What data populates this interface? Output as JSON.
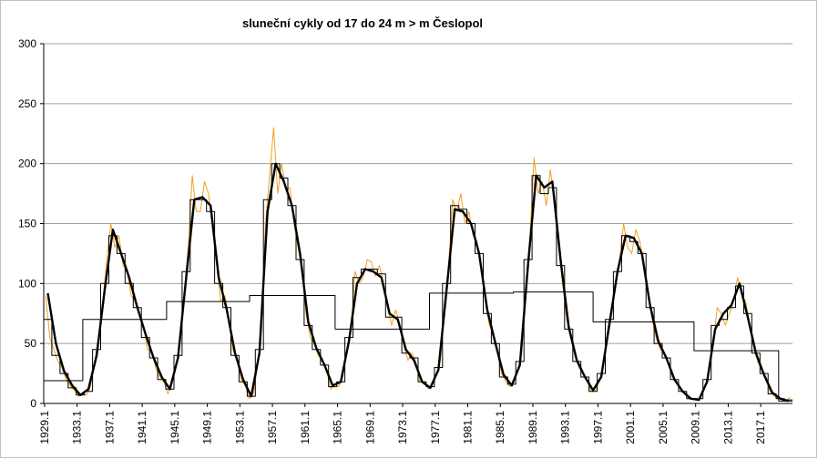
{
  "chart_data": {
    "type": "line",
    "title": "sluneční cykly od 17 do 24   m > m  Česlopol",
    "xlim": [
      1929,
      2021
    ],
    "ylim": [
      0,
      300
    ],
    "yticks": [
      0,
      50,
      100,
      150,
      200,
      250,
      300
    ],
    "xticks": [
      1929.1,
      1933.1,
      1937.1,
      1941.1,
      1945.1,
      1949.1,
      1953.1,
      1957.1,
      1961.1,
      1965.1,
      1969.1,
      1973.1,
      1977.1,
      1981.1,
      1985.1,
      1989.1,
      1993.1,
      1997.1,
      2001.1,
      2005.1,
      2009.1,
      2013.1,
      2017.1
    ],
    "grid": true,
    "series": [
      {
        "style": "line",
        "color": "#f4a020",
        "x": [
          1929.25,
          1929.75,
          1930.25,
          1930.75,
          1931.25,
          1931.75,
          1932.25,
          1932.75,
          1933.25,
          1933.75,
          1934.25,
          1934.75,
          1935.25,
          1935.75,
          1936.25,
          1936.75,
          1937.25,
          1937.75,
          1938.25,
          1938.75,
          1939.25,
          1939.75,
          1940.25,
          1940.75,
          1941.25,
          1941.75,
          1942.25,
          1942.75,
          1943.25,
          1943.75,
          1944.25,
          1944.75,
          1945.25,
          1945.75,
          1946.25,
          1946.75,
          1947.25,
          1947.75,
          1948.25,
          1948.75,
          1949.25,
          1949.75,
          1950.25,
          1950.75,
          1951.25,
          1951.75,
          1952.25,
          1952.75,
          1953.25,
          1953.75,
          1954.25,
          1954.75,
          1955.25,
          1955.75,
          1956.25,
          1956.75,
          1957.25,
          1957.75,
          1958.25,
          1958.75,
          1959.25,
          1959.75,
          1960.25,
          1960.75,
          1961.25,
          1961.75,
          1962.25,
          1962.75,
          1963.25,
          1963.75,
          1964.25,
          1964.75,
          1965.25,
          1965.75,
          1966.25,
          1966.75,
          1967.25,
          1967.75,
          1968.25,
          1968.75,
          1969.25,
          1969.75,
          1970.25,
          1970.75,
          1971.25,
          1971.75,
          1972.25,
          1972.75,
          1973.25,
          1973.75,
          1974.25,
          1974.75,
          1975.25,
          1975.75,
          1976.25,
          1976.75,
          1977.25,
          1977.75,
          1978.25,
          1978.75,
          1979.25,
          1979.75,
          1980.25,
          1980.75,
          1981.25,
          1981.75,
          1982.25,
          1982.75,
          1983.25,
          1983.75,
          1984.25,
          1984.75,
          1985.25,
          1985.75,
          1986.25,
          1986.75,
          1987.25,
          1987.75,
          1988.25,
          1988.75,
          1989.25,
          1989.75,
          1990.25,
          1990.75,
          1991.25,
          1991.75,
          1992.25,
          1992.75,
          1993.25,
          1993.75,
          1994.25,
          1994.75,
          1995.25,
          1995.75,
          1996.25,
          1996.75,
          1997.25,
          1997.75,
          1998.25,
          1998.75,
          1999.25,
          1999.75,
          2000.25,
          2000.75,
          2001.25,
          2001.75,
          2002.25,
          2002.75,
          2003.25,
          2003.75,
          2004.25,
          2004.75,
          2005.25,
          2005.75,
          2006.25,
          2006.75,
          2007.25,
          2007.75,
          2008.25,
          2008.75,
          2009.25,
          2009.75,
          2010.25,
          2010.75,
          2011.25,
          2011.75,
          2012.25,
          2012.75,
          2013.25,
          2013.75,
          2014.25,
          2014.75,
          2015.25,
          2015.75,
          2016.25,
          2016.75,
          2017.25,
          2017.75,
          2018.25,
          2018.75,
          2019.25,
          2019.75,
          2020.25,
          2020.75
        ],
        "values": [
          90,
          55,
          45,
          35,
          30,
          20,
          15,
          11,
          6,
          8,
          7,
          14,
          35,
          55,
          85,
          120,
          150,
          130,
          140,
          115,
          110,
          90,
          85,
          75,
          65,
          45,
          45,
          30,
          22,
          18,
          8,
          16,
          30,
          50,
          90,
          130,
          190,
          160,
          160,
          185,
          175,
          145,
          115,
          85,
          90,
          70,
          45,
          35,
          20,
          15,
          4,
          8,
          30,
          60,
          150,
          190,
          230,
          175,
          200,
          178,
          180,
          150,
          130,
          110,
          75,
          55,
          50,
          40,
          35,
          28,
          12,
          16,
          14,
          22,
          45,
          65,
          110,
          100,
          105,
          120,
          118,
          106,
          115,
          100,
          80,
          65,
          78,
          66,
          48,
          36,
          42,
          34,
          18,
          18,
          12,
          16,
          24,
          36,
          85,
          115,
          170,
          160,
          175,
          150,
          160,
          140,
          135,
          115,
          85,
          65,
          58,
          42,
          25,
          19,
          14,
          18,
          28,
          42,
          100,
          140,
          205,
          175,
          185,
          165,
          195,
          165,
          130,
          100,
          70,
          54,
          40,
          30,
          25,
          19,
          10,
          10,
          18,
          32,
          60,
          80,
          100,
          120,
          150,
          130,
          125,
          145,
          135,
          115,
          90,
          70,
          55,
          45,
          42,
          34,
          22,
          18,
          12,
          8,
          4,
          4,
          3,
          5,
          15,
          25,
          50,
          80,
          75,
          65,
          75,
          85,
          105,
          91,
          85,
          65,
          50,
          34,
          28,
          22,
          10,
          6,
          4,
          4,
          3,
          5
        ]
      },
      {
        "style": "step",
        "color": "#000000",
        "x": [
          1929,
          1930,
          1931,
          1932,
          1933,
          1934,
          1935,
          1936,
          1937,
          1938,
          1939,
          1940,
          1941,
          1942,
          1943,
          1944,
          1945,
          1946,
          1947,
          1948,
          1949,
          1950,
          1951,
          1952,
          1953,
          1954,
          1955,
          1956,
          1957,
          1958,
          1959,
          1960,
          1961,
          1962,
          1963,
          1964,
          1965,
          1966,
          1967,
          1968,
          1969,
          1970,
          1971,
          1972,
          1973,
          1974,
          1975,
          1976,
          1977,
          1978,
          1979,
          1980,
          1981,
          1982,
          1983,
          1984,
          1985,
          1986,
          1987,
          1988,
          1989,
          1990,
          1991,
          1992,
          1993,
          1994,
          1995,
          1996,
          1997,
          1998,
          1999,
          2000,
          2001,
          2002,
          2003,
          2004,
          2005,
          2006,
          2007,
          2008,
          2009,
          2010,
          2011,
          2012,
          2013,
          2014,
          2015,
          2016,
          2017,
          2018,
          2019,
          2020
        ],
        "values": [
          70,
          40,
          25,
          13,
          7,
          10,
          45,
          100,
          140,
          125,
          100,
          80,
          55,
          38,
          20,
          12,
          40,
          110,
          170,
          170,
          160,
          100,
          80,
          40,
          18,
          6,
          45,
          170,
          200,
          188,
          165,
          120,
          65,
          45,
          32,
          14,
          18,
          55,
          105,
          112,
          112,
          108,
          72,
          72,
          42,
          38,
          18,
          14,
          30,
          100,
          165,
          162,
          150,
          125,
          75,
          50,
          22,
          16,
          35,
          120,
          190,
          175,
          180,
          115,
          62,
          35,
          22,
          10,
          25,
          70,
          110,
          140,
          135,
          125,
          80,
          50,
          38,
          20,
          10,
          4,
          4,
          20,
          65,
          70,
          80,
          98,
          75,
          42,
          25,
          8,
          4,
          3
        ]
      },
      {
        "style": "thick",
        "color": "#000000",
        "x": [
          1929.5,
          1930.5,
          1931.5,
          1932.5,
          1933.5,
          1934.5,
          1935.5,
          1936.5,
          1937.5,
          1938.5,
          1939.5,
          1940.5,
          1941.5,
          1942.5,
          1943.5,
          1944.5,
          1945.5,
          1946.5,
          1947.5,
          1948.5,
          1949.5,
          1950.5,
          1951.5,
          1952.5,
          1953.5,
          1954.5,
          1955.5,
          1956.5,
          1957.5,
          1958.5,
          1959.5,
          1960.5,
          1961.5,
          1962.5,
          1963.5,
          1964.5,
          1965.5,
          1966.5,
          1967.5,
          1968.5,
          1969.5,
          1970.5,
          1971.5,
          1972.5,
          1973.5,
          1974.5,
          1975.5,
          1976.5,
          1977.5,
          1978.5,
          1979.5,
          1980.5,
          1981.5,
          1982.5,
          1983.5,
          1984.5,
          1985.5,
          1986.5,
          1987.5,
          1988.5,
          1989.5,
          1990.5,
          1991.5,
          1992.5,
          1993.5,
          1994.5,
          1995.5,
          1996.5,
          1997.5,
          1998.5,
          1999.5,
          2000.5,
          2001.5,
          2002.5,
          2003.5,
          2004.5,
          2005.5,
          2006.5,
          2007.5,
          2008.5,
          2009.5,
          2010.5,
          2011.5,
          2012.5,
          2013.5,
          2014.5,
          2015.5,
          2016.5,
          2017.5,
          2018.5,
          2019.5,
          2020.5
        ],
        "values": [
          92,
          50,
          27,
          15,
          7,
          12,
          40,
          95,
          145,
          125,
          105,
          80,
          58,
          38,
          22,
          12,
          38,
          105,
          170,
          172,
          165,
          105,
          78,
          42,
          20,
          6,
          42,
          160,
          200,
          185,
          165,
          125,
          68,
          46,
          32,
          15,
          18,
          52,
          100,
          112,
          110,
          105,
          75,
          70,
          45,
          36,
          18,
          13,
          28,
          95,
          162,
          160,
          150,
          125,
          78,
          50,
          24,
          15,
          32,
          115,
          190,
          180,
          185,
          120,
          64,
          36,
          22,
          11,
          22,
          66,
          110,
          140,
          138,
          125,
          82,
          52,
          38,
          20,
          10,
          4,
          3,
          18,
          62,
          75,
          82,
          100,
          72,
          42,
          24,
          9,
          4,
          2
        ]
      },
      {
        "style": "step",
        "color": "#000000",
        "x": [
          1929,
          1933.8,
          1944.1,
          1954.3,
          1964.8,
          1976.4,
          1986.7,
          1996.5,
          2008.9,
          2019.3
        ],
        "values": [
          19,
          70,
          85,
          90,
          62,
          92,
          93,
          68,
          44,
          2
        ]
      }
    ]
  }
}
